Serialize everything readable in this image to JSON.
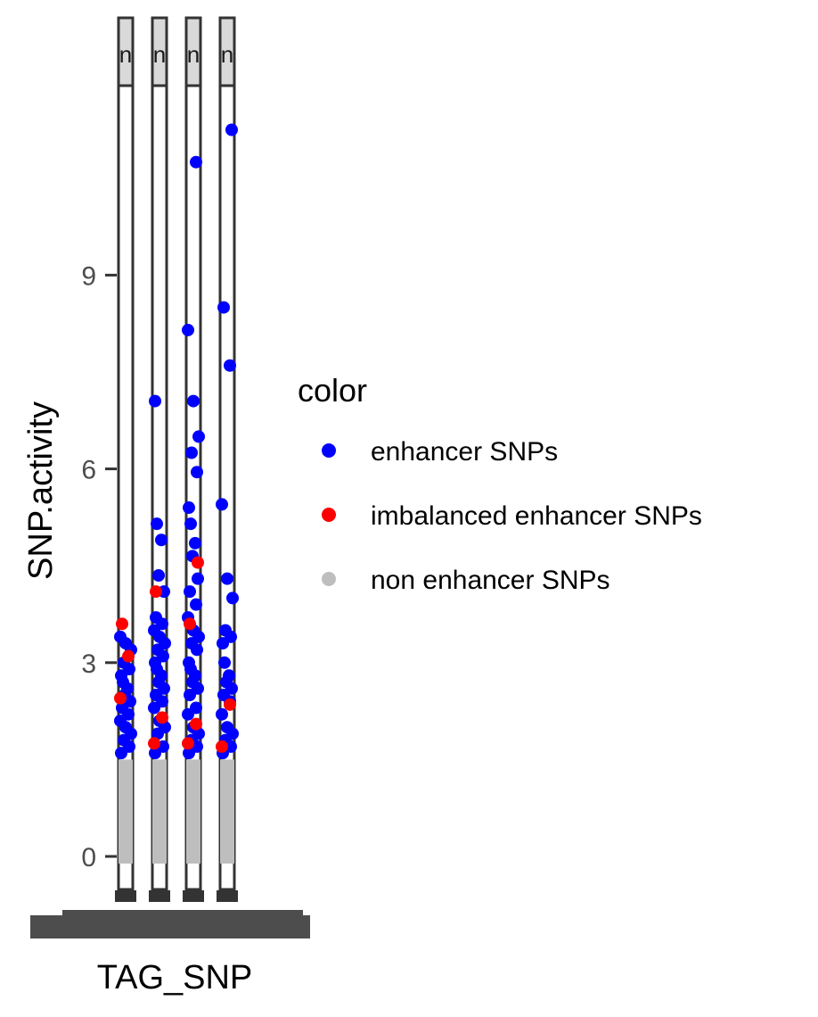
{
  "chart_data": {
    "type": "scatter",
    "title": "",
    "xlabel": "TAG_SNP",
    "ylabel": "SNP.activity",
    "ylim": [
      -0.5,
      12.5
    ],
    "yticks": [
      0,
      3,
      6,
      9
    ],
    "grid": true,
    "facets": [
      "n",
      "n",
      "n",
      "n"
    ],
    "x_tick_labels_illegible": true,
    "legend": {
      "title": "color",
      "placement": "right",
      "entries": [
        {
          "label": "enhancer SNPs",
          "color": "#0000ff"
        },
        {
          "label": "imbalanced enhancer SNPs",
          "color": "#ff0000"
        },
        {
          "label": "non enhancer SNPs",
          "color": "#bebebe"
        }
      ]
    },
    "series": [
      {
        "name": "enhancer SNPs",
        "color": "#0000ff",
        "points": [
          {
            "panel": 0,
            "y": [
              1.6,
              1.7,
              1.8,
              1.9,
              2.0,
              2.1,
              2.2,
              2.3,
              2.4,
              2.5,
              2.6,
              2.7,
              2.8,
              2.9,
              3.0,
              3.2,
              3.3,
              3.4
            ]
          },
          {
            "panel": 1,
            "y": [
              1.6,
              1.7,
              1.9,
              2.0,
              2.1,
              2.3,
              2.4,
              2.5,
              2.6,
              2.7,
              2.8,
              2.9,
              3.0,
              3.1,
              3.2,
              3.3,
              3.4,
              3.5,
              3.6,
              3.7,
              4.1,
              4.35,
              4.9,
              5.15,
              7.05
            ]
          },
          {
            "panel": 2,
            "y": [
              1.6,
              1.7,
              1.8,
              1.9,
              2.0,
              2.2,
              2.3,
              2.5,
              2.6,
              2.7,
              2.8,
              2.9,
              3.0,
              3.2,
              3.3,
              3.4,
              3.5,
              3.7,
              3.9,
              4.1,
              4.3,
              4.65,
              4.85,
              5.15,
              5.4,
              5.95,
              6.25,
              6.5,
              7.05,
              8.15,
              10.75
            ]
          },
          {
            "panel": 3,
            "y": [
              1.6,
              1.7,
              1.8,
              1.9,
              2.0,
              2.2,
              2.4,
              2.5,
              2.6,
              2.7,
              2.8,
              3.0,
              3.3,
              3.4,
              3.5,
              4.0,
              4.3,
              5.45,
              7.6,
              8.5,
              11.25
            ]
          }
        ]
      },
      {
        "name": "imbalanced enhancer SNPs",
        "color": "#ff0000",
        "points": [
          {
            "panel": 0,
            "y": [
              2.45,
              3.1,
              3.6
            ]
          },
          {
            "panel": 1,
            "y": [
              1.75,
              2.15,
              4.1
            ]
          },
          {
            "panel": 2,
            "y": [
              1.75,
              2.05,
              3.6,
              4.55
            ]
          },
          {
            "panel": 3,
            "y": [
              1.7,
              2.35
            ]
          }
        ]
      },
      {
        "name": "non enhancer SNPs",
        "color": "#bebebe",
        "range": [
          0,
          1.5
        ],
        "note": "dense overlapping points"
      }
    ]
  }
}
